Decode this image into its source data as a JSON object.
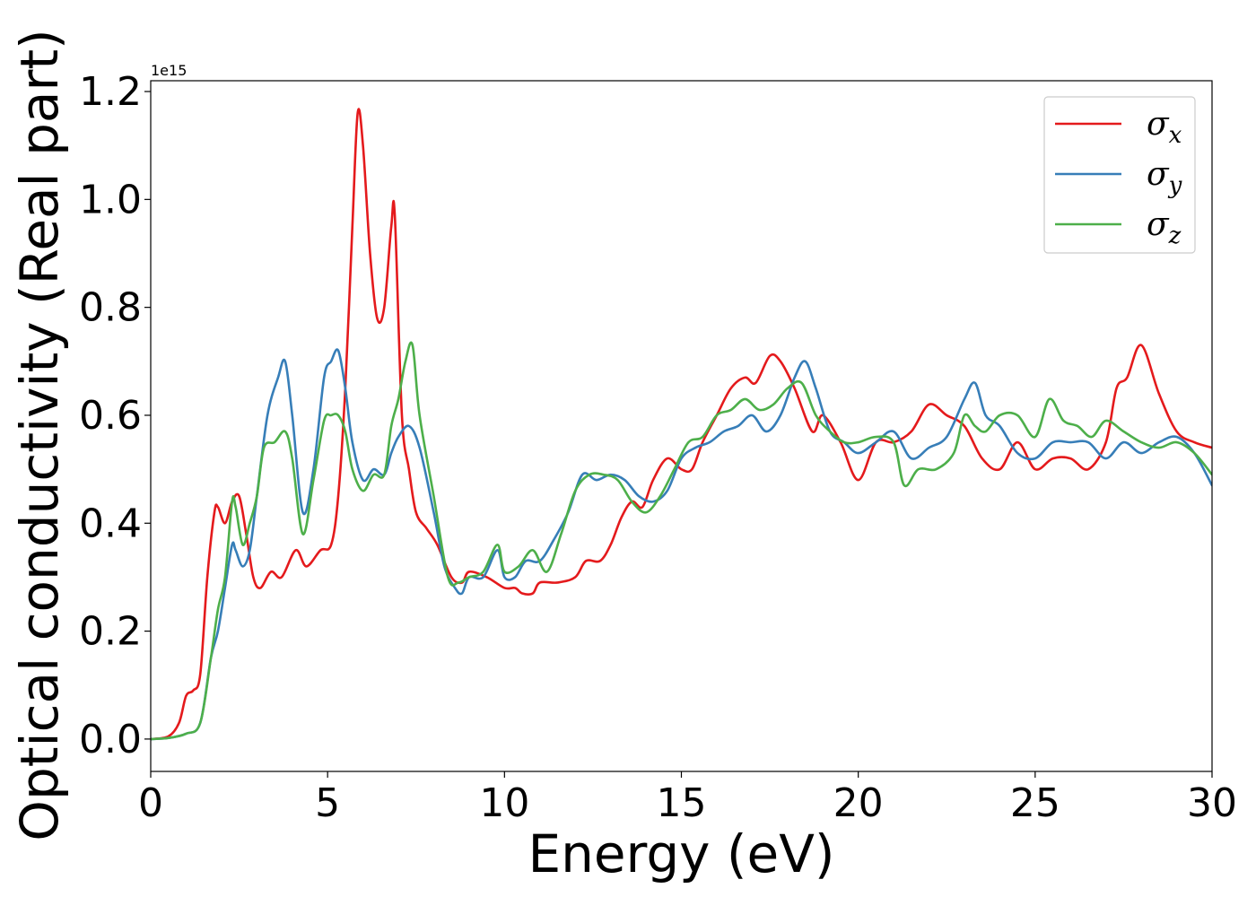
{
  "chart_data": {
    "type": "line",
    "xlabel": "Energy (eV)",
    "ylabel": "Optical conductivity (Real part)",
    "y_offset_text": "1e15",
    "xlim": [
      0,
      30
    ],
    "ylim": [
      -0.06,
      1.22
    ],
    "xticks": [
      0,
      5,
      10,
      15,
      20,
      25,
      30
    ],
    "xtick_labels": [
      "0",
      "5",
      "10",
      "15",
      "20",
      "25",
      "30"
    ],
    "yticks": [
      0.0,
      0.2,
      0.4,
      0.6,
      0.8,
      1.0,
      1.2
    ],
    "ytick_labels": [
      "0.0",
      "0.2",
      "0.4",
      "0.6",
      "0.8",
      "1.0",
      "1.2"
    ],
    "grid": false,
    "legend_position": "top-right",
    "series": [
      {
        "name": "σx",
        "symbol": "σ",
        "subscript": "x",
        "color": "#e41a1c",
        "x": [
          0,
          0.5,
          0.8,
          1.0,
          1.2,
          1.4,
          1.6,
          1.8,
          1.9,
          2.1,
          2.3,
          2.5,
          2.7,
          2.9,
          3.1,
          3.4,
          3.7,
          4.1,
          4.4,
          4.8,
          5.1,
          5.3,
          5.5,
          5.7,
          5.85,
          6.0,
          6.2,
          6.4,
          6.6,
          6.8,
          6.9,
          7.1,
          7.3,
          7.5,
          7.8,
          8.1,
          8.5,
          8.8,
          9.0,
          9.5,
          10.0,
          10.3,
          10.5,
          10.8,
          11.0,
          11.5,
          12.0,
          12.3,
          12.7,
          13.0,
          13.3,
          13.6,
          13.9,
          14.2,
          14.6,
          15.0,
          15.3,
          15.6,
          16.0,
          16.4,
          16.8,
          17.1,
          17.5,
          17.8,
          18.2,
          18.7,
          19.0,
          19.5,
          20.0,
          20.5,
          21.0,
          21.5,
          22.0,
          22.5,
          23.0,
          23.5,
          24.0,
          24.5,
          25.0,
          25.5,
          26.0,
          26.5,
          27.0,
          27.3,
          27.6,
          28.0,
          28.5,
          29.0,
          29.5,
          30.0
        ],
        "y": [
          0.0,
          0.005,
          0.03,
          0.08,
          0.09,
          0.12,
          0.3,
          0.42,
          0.43,
          0.4,
          0.44,
          0.45,
          0.38,
          0.3,
          0.28,
          0.31,
          0.3,
          0.35,
          0.32,
          0.35,
          0.36,
          0.45,
          0.65,
          0.95,
          1.16,
          1.1,
          0.9,
          0.78,
          0.8,
          0.95,
          0.97,
          0.6,
          0.5,
          0.42,
          0.39,
          0.36,
          0.3,
          0.29,
          0.31,
          0.3,
          0.28,
          0.28,
          0.27,
          0.27,
          0.29,
          0.29,
          0.3,
          0.33,
          0.33,
          0.36,
          0.41,
          0.44,
          0.43,
          0.48,
          0.52,
          0.5,
          0.5,
          0.55,
          0.6,
          0.65,
          0.67,
          0.66,
          0.71,
          0.7,
          0.65,
          0.57,
          0.6,
          0.55,
          0.48,
          0.55,
          0.55,
          0.57,
          0.62,
          0.6,
          0.58,
          0.52,
          0.5,
          0.55,
          0.5,
          0.52,
          0.52,
          0.5,
          0.55,
          0.65,
          0.67,
          0.73,
          0.64,
          0.57,
          0.55,
          0.54
        ]
      },
      {
        "name": "σy",
        "symbol": "σ",
        "subscript": "y",
        "color": "#377eb8",
        "x": [
          0,
          0.5,
          1.0,
          1.4,
          1.7,
          1.9,
          2.1,
          2.3,
          2.4,
          2.6,
          2.8,
          3.0,
          3.3,
          3.6,
          3.8,
          4.0,
          4.3,
          4.6,
          4.9,
          5.1,
          5.3,
          5.5,
          5.7,
          6.0,
          6.3,
          6.6,
          6.8,
          7.0,
          7.3,
          7.6,
          8.0,
          8.3,
          8.6,
          8.8,
          9.0,
          9.4,
          9.8,
          10.0,
          10.3,
          10.6,
          11.0,
          11.4,
          11.8,
          12.2,
          12.6,
          13.0,
          13.4,
          13.8,
          14.2,
          14.6,
          15.0,
          15.4,
          15.8,
          16.2,
          16.6,
          17.0,
          17.4,
          17.8,
          18.2,
          18.5,
          18.8,
          19.2,
          19.6,
          20.0,
          20.5,
          21.0,
          21.5,
          22.0,
          22.5,
          23.0,
          23.3,
          23.6,
          24.0,
          24.5,
          25.0,
          25.5,
          26.0,
          26.5,
          27.0,
          27.5,
          28.0,
          28.5,
          29.0,
          29.5,
          30.0
        ],
        "y": [
          0.0,
          0.002,
          0.01,
          0.03,
          0.15,
          0.2,
          0.28,
          0.36,
          0.35,
          0.32,
          0.35,
          0.45,
          0.6,
          0.67,
          0.7,
          0.6,
          0.42,
          0.5,
          0.67,
          0.7,
          0.72,
          0.65,
          0.55,
          0.48,
          0.5,
          0.49,
          0.53,
          0.56,
          0.58,
          0.54,
          0.42,
          0.32,
          0.28,
          0.27,
          0.3,
          0.3,
          0.35,
          0.3,
          0.3,
          0.33,
          0.33,
          0.37,
          0.42,
          0.49,
          0.48,
          0.49,
          0.48,
          0.45,
          0.44,
          0.46,
          0.52,
          0.54,
          0.55,
          0.57,
          0.58,
          0.6,
          0.57,
          0.6,
          0.67,
          0.7,
          0.65,
          0.57,
          0.55,
          0.53,
          0.55,
          0.57,
          0.52,
          0.54,
          0.56,
          0.63,
          0.66,
          0.6,
          0.58,
          0.53,
          0.52,
          0.55,
          0.55,
          0.55,
          0.52,
          0.55,
          0.53,
          0.55,
          0.56,
          0.53,
          0.47
        ]
      },
      {
        "name": "σz",
        "symbol": "σ",
        "subscript": "z",
        "color": "#4daf4a",
        "x": [
          0,
          0.5,
          1.0,
          1.4,
          1.7,
          1.9,
          2.1,
          2.3,
          2.4,
          2.6,
          2.8,
          3.0,
          3.2,
          3.5,
          3.8,
          4.0,
          4.3,
          4.6,
          4.9,
          5.1,
          5.3,
          5.5,
          5.7,
          6.0,
          6.3,
          6.6,
          6.8,
          7.0,
          7.2,
          7.4,
          7.6,
          8.0,
          8.4,
          8.7,
          9.0,
          9.4,
          9.8,
          10.0,
          10.4,
          10.8,
          11.2,
          11.6,
          12.0,
          12.4,
          12.8,
          13.2,
          13.6,
          14.0,
          14.4,
          14.8,
          15.2,
          15.6,
          16.0,
          16.4,
          16.8,
          17.2,
          17.6,
          18.0,
          18.4,
          18.8,
          19.2,
          19.6,
          20.0,
          20.5,
          21.0,
          21.3,
          21.7,
          22.2,
          22.7,
          23.0,
          23.3,
          23.6,
          24.0,
          24.5,
          25.0,
          25.4,
          25.8,
          26.2,
          26.6,
          27.0,
          27.5,
          28.0,
          28.5,
          29.0,
          29.5,
          30.0
        ],
        "y": [
          0.0,
          0.002,
          0.01,
          0.03,
          0.15,
          0.24,
          0.3,
          0.44,
          0.43,
          0.36,
          0.4,
          0.45,
          0.54,
          0.55,
          0.57,
          0.52,
          0.38,
          0.48,
          0.59,
          0.6,
          0.6,
          0.57,
          0.5,
          0.46,
          0.49,
          0.49,
          0.58,
          0.63,
          0.7,
          0.73,
          0.6,
          0.45,
          0.3,
          0.29,
          0.3,
          0.31,
          0.36,
          0.31,
          0.32,
          0.35,
          0.31,
          0.38,
          0.46,
          0.49,
          0.49,
          0.48,
          0.44,
          0.42,
          0.45,
          0.5,
          0.55,
          0.56,
          0.6,
          0.61,
          0.63,
          0.61,
          0.62,
          0.65,
          0.66,
          0.6,
          0.57,
          0.55,
          0.55,
          0.56,
          0.55,
          0.47,
          0.5,
          0.5,
          0.53,
          0.6,
          0.58,
          0.57,
          0.6,
          0.6,
          0.56,
          0.63,
          0.59,
          0.58,
          0.56,
          0.59,
          0.57,
          0.55,
          0.54,
          0.55,
          0.53,
          0.49
        ]
      }
    ]
  }
}
